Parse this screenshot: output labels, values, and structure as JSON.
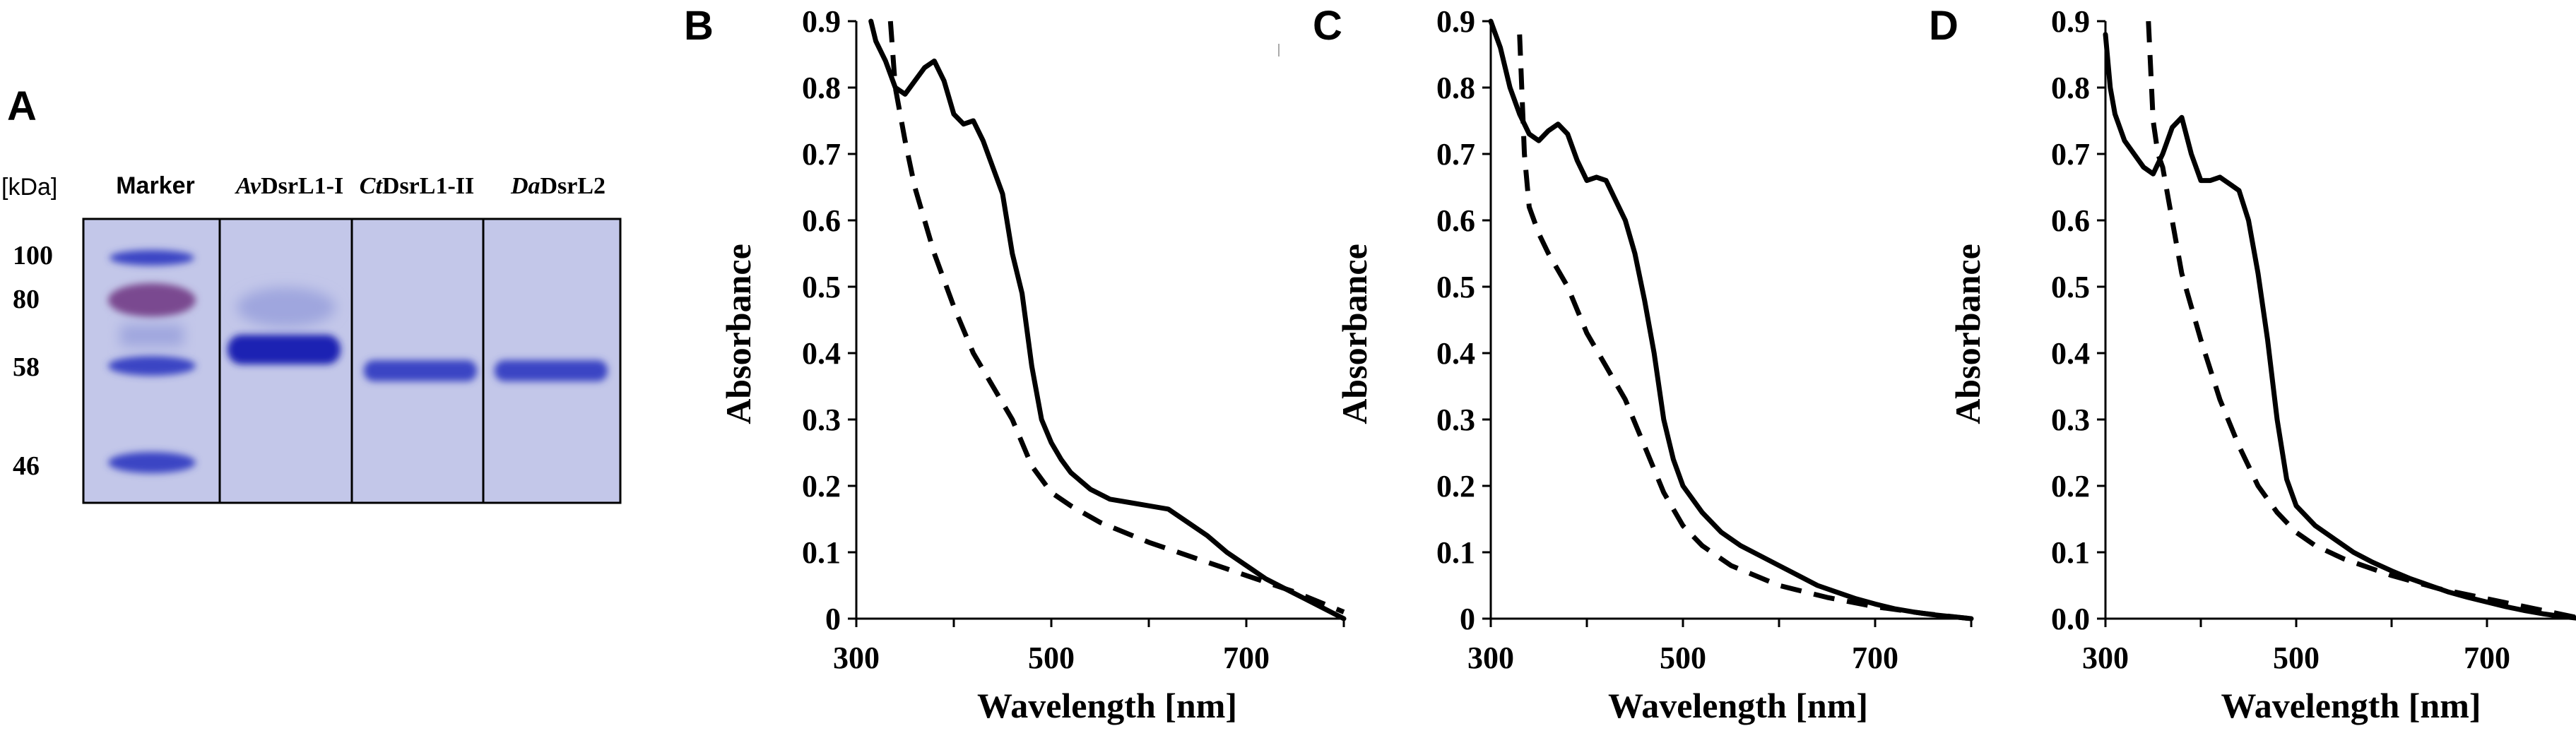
{
  "gel": {
    "panel_label": "A",
    "unit_label": "[kDa]",
    "mw_markers": [
      "100",
      "80",
      "58",
      "46"
    ],
    "lanes": [
      {
        "prefix": "",
        "suffix": "Marker"
      },
      {
        "prefix": "Av",
        "suffix": "DsrL1-I"
      },
      {
        "prefix": "Ct",
        "suffix": "DsrL1-II"
      },
      {
        "prefix": "Da",
        "suffix": "DsrL2"
      }
    ],
    "colors": {
      "background": "#c3c7e9",
      "band": "#3a45c4",
      "band_dark": "#1c22b3",
      "band_red": "#7a4a90",
      "border": "#000000"
    }
  },
  "chart_data": [
    {
      "type": "line",
      "panel": "B",
      "xlabel": "Wavelength [nm]",
      "ylabel": "Absorbance",
      "xlim": [
        300,
        800
      ],
      "ylim": [
        0,
        0.9
      ],
      "xticks": [
        "300",
        "500",
        "700"
      ],
      "yticks": [
        "0",
        "0.1",
        "0.2",
        "0.3",
        "0.4",
        "0.5",
        "0.6",
        "0.7",
        "0.8",
        "0.9"
      ],
      "series": [
        {
          "name": "solid",
          "style": "solid",
          "x": [
            315,
            320,
            330,
            340,
            350,
            360,
            370,
            380,
            390,
            400,
            410,
            420,
            430,
            440,
            450,
            460,
            470,
            480,
            490,
            500,
            510,
            520,
            540,
            560,
            580,
            600,
            620,
            640,
            660,
            680,
            700,
            720,
            740,
            760,
            780,
            800
          ],
          "y": [
            0.9,
            0.87,
            0.84,
            0.8,
            0.79,
            0.81,
            0.83,
            0.84,
            0.81,
            0.76,
            0.745,
            0.75,
            0.72,
            0.68,
            0.64,
            0.55,
            0.49,
            0.38,
            0.3,
            0.265,
            0.24,
            0.22,
            0.195,
            0.18,
            0.175,
            0.17,
            0.165,
            0.145,
            0.125,
            0.1,
            0.08,
            0.06,
            0.045,
            0.03,
            0.015,
            0.0
          ]
        },
        {
          "name": "dashed",
          "style": "dashed",
          "x": [
            335,
            340,
            350,
            360,
            380,
            400,
            420,
            440,
            460,
            480,
            500,
            520,
            550,
            600,
            650,
            700,
            750,
            800
          ],
          "y": [
            0.9,
            0.8,
            0.72,
            0.65,
            0.55,
            0.47,
            0.4,
            0.35,
            0.3,
            0.23,
            0.19,
            0.17,
            0.145,
            0.115,
            0.09,
            0.065,
            0.04,
            0.01
          ]
        }
      ]
    },
    {
      "type": "line",
      "panel": "C",
      "xlabel": "Wavelength [nm]",
      "ylabel": "Absorbance",
      "xlim": [
        300,
        800
      ],
      "ylim": [
        0,
        0.9
      ],
      "xticks": [
        "300",
        "500",
        "700"
      ],
      "yticks": [
        "0",
        "0.1",
        "0.2",
        "0.3",
        "0.4",
        "0.5",
        "0.6",
        "0.7",
        "0.8",
        "0.9"
      ],
      "series": [
        {
          "name": "solid",
          "style": "solid",
          "x": [
            300,
            310,
            320,
            330,
            340,
            350,
            360,
            370,
            380,
            390,
            400,
            410,
            420,
            430,
            440,
            450,
            460,
            470,
            480,
            490,
            500,
            520,
            540,
            560,
            580,
            600,
            620,
            640,
            660,
            680,
            700,
            720,
            740,
            760,
            780,
            800
          ],
          "y": [
            0.9,
            0.86,
            0.8,
            0.76,
            0.73,
            0.72,
            0.735,
            0.745,
            0.73,
            0.69,
            0.66,
            0.665,
            0.66,
            0.63,
            0.6,
            0.55,
            0.48,
            0.4,
            0.3,
            0.24,
            0.2,
            0.16,
            0.13,
            0.11,
            0.095,
            0.08,
            0.065,
            0.05,
            0.04,
            0.03,
            0.022,
            0.015,
            0.01,
            0.006,
            0.003,
            0.0
          ]
        },
        {
          "name": "dashed",
          "style": "dashed",
          "x": [
            330,
            335,
            340,
            350,
            360,
            380,
            400,
            420,
            440,
            460,
            480,
            500,
            520,
            550,
            600,
            650,
            700,
            750,
            800
          ],
          "y": [
            0.88,
            0.7,
            0.62,
            0.58,
            0.55,
            0.5,
            0.43,
            0.38,
            0.33,
            0.26,
            0.19,
            0.14,
            0.11,
            0.08,
            0.05,
            0.032,
            0.018,
            0.008,
            0.0
          ]
        }
      ]
    },
    {
      "type": "line",
      "panel": "D",
      "xlabel": "Wavelength [nm]",
      "ylabel": "Absorbance",
      "xlim": [
        300,
        800
      ],
      "ylim": [
        0,
        0.9
      ],
      "xticks": [
        "300",
        "500",
        "700"
      ],
      "yticks": [
        "0.0",
        "0.1",
        "0.2",
        "0.3",
        "0.4",
        "0.5",
        "0.6",
        "0.7",
        "0.8",
        "0.9"
      ],
      "series": [
        {
          "name": "solid",
          "style": "solid",
          "x": [
            300,
            305,
            310,
            320,
            330,
            340,
            350,
            360,
            370,
            380,
            390,
            400,
            410,
            420,
            430,
            440,
            450,
            460,
            470,
            480,
            490,
            500,
            520,
            540,
            560,
            580,
            600,
            620,
            640,
            660,
            680,
            700,
            720,
            740,
            760,
            780,
            800
          ],
          "y": [
            0.88,
            0.8,
            0.76,
            0.72,
            0.7,
            0.68,
            0.67,
            0.7,
            0.74,
            0.755,
            0.7,
            0.66,
            0.66,
            0.665,
            0.655,
            0.645,
            0.6,
            0.52,
            0.42,
            0.3,
            0.21,
            0.17,
            0.14,
            0.12,
            0.1,
            0.085,
            0.072,
            0.06,
            0.05,
            0.04,
            0.032,
            0.025,
            0.018,
            0.012,
            0.007,
            0.003,
            0.0
          ]
        },
        {
          "name": "dashed",
          "style": "dashed",
          "x": [
            345,
            350,
            355,
            360,
            370,
            380,
            400,
            420,
            440,
            460,
            480,
            500,
            520,
            550,
            600,
            650,
            700,
            750,
            800
          ],
          "y": [
            0.9,
            0.75,
            0.7,
            0.68,
            0.6,
            0.52,
            0.42,
            0.33,
            0.26,
            0.2,
            0.16,
            0.13,
            0.11,
            0.09,
            0.065,
            0.045,
            0.03,
            0.015,
            0.0
          ]
        }
      ]
    }
  ]
}
